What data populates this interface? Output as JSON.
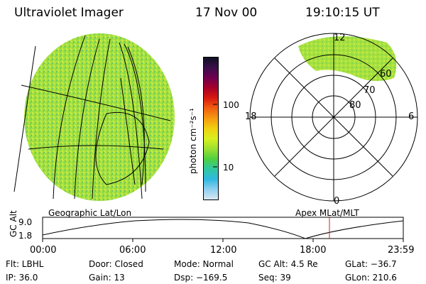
{
  "header": {
    "title": "Ultraviolet Imager",
    "date": "17 Nov 00",
    "time": "19:10:15 UT"
  },
  "left_panel": {
    "label": "Geographic Lat/Lon",
    "dominant_color": "#9be03a"
  },
  "colorbar": {
    "unit_label": "photon cm⁻²s⁻¹",
    "ticks": [
      "100",
      "10"
    ],
    "colors": [
      "#101025",
      "#3a0f4a",
      "#700050",
      "#a8002a",
      "#d81a10",
      "#f06010",
      "#f59a10",
      "#f0d010",
      "#d8f020",
      "#9ce030",
      "#50d040",
      "#30c8a0",
      "#30b8e0",
      "#90d0f0",
      "#d8e8f0"
    ]
  },
  "polar_plot": {
    "label": "Apex MLat/MLT",
    "mlt_labels": [
      "12",
      "18",
      "6",
      "0"
    ],
    "lat_labels": [
      "60",
      "70",
      "80"
    ]
  },
  "timeline": {
    "axis_title": "GC Alt",
    "y_ticks": [
      "9.0",
      "1.8"
    ],
    "x_ticks": [
      "00:00",
      "06:00",
      "12:00",
      "18:00",
      "23:59"
    ],
    "marker_color": "#d02020"
  },
  "info": {
    "row1": [
      "Flt: LBHL",
      "Door: Closed",
      "Mode: Normal",
      "GC Alt: 4.5 Re",
      "GLat: −36.7"
    ],
    "row2": [
      "IP: 36.0",
      "Gain: 13",
      "Dsp: −169.5",
      "Seq: 39",
      "GLon: 210.6"
    ]
  }
}
